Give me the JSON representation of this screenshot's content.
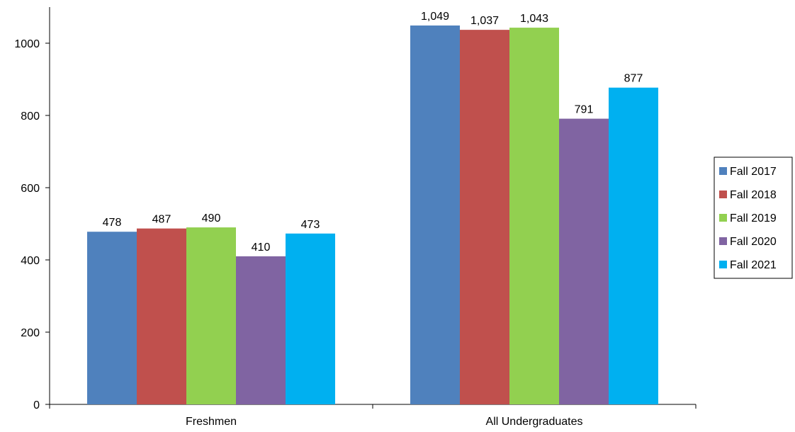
{
  "chart_data": {
    "type": "bar",
    "categories": [
      "Freshmen",
      "All Undergraduates"
    ],
    "series": [
      {
        "name": "Fall 2017",
        "color": "#4F81BD",
        "values": [
          478,
          1049
        ],
        "labels": [
          "478",
          "1,049"
        ]
      },
      {
        "name": "Fall 2018",
        "color": "#C0504D",
        "values": [
          487,
          1037
        ],
        "labels": [
          "487",
          "1,037"
        ]
      },
      {
        "name": "Fall 2019",
        "color": "#92D050",
        "values": [
          490,
          1043
        ],
        "labels": [
          "490",
          "1,043"
        ]
      },
      {
        "name": "Fall 2020",
        "color": "#8064A2",
        "values": [
          410,
          791
        ],
        "labels": [
          "410",
          "791"
        ]
      },
      {
        "name": "Fall 2021",
        "color": "#00B0F0",
        "values": [
          473,
          877
        ],
        "labels": [
          "473",
          "877"
        ]
      }
    ],
    "ylim": [
      0,
      1100
    ],
    "yticks": [
      0,
      200,
      400,
      600,
      800,
      1000
    ],
    "title": "",
    "xlabel": "",
    "ylabel": "",
    "grid": false,
    "legend": "right"
  }
}
